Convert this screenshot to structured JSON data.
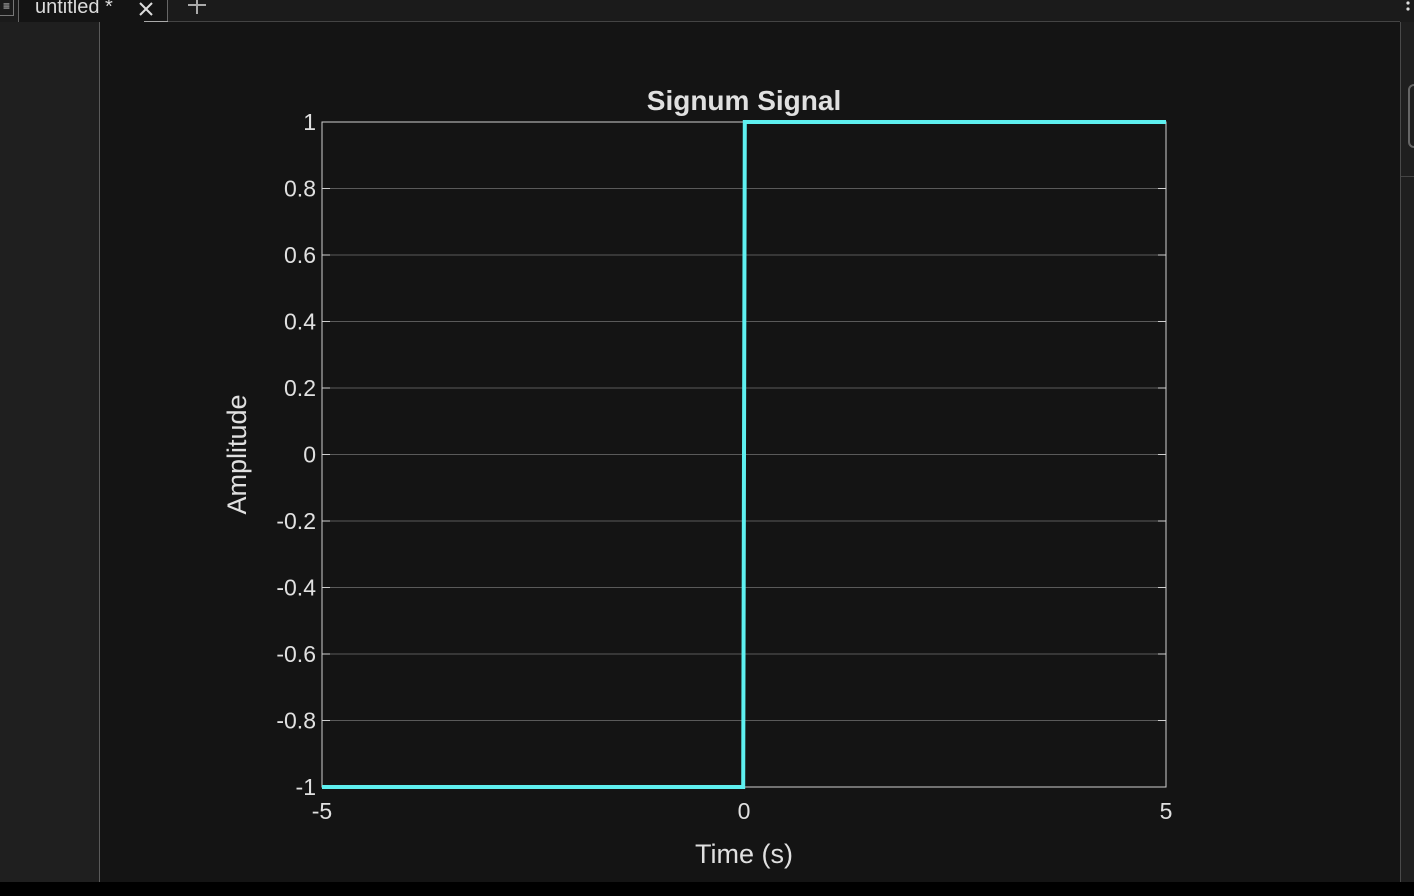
{
  "tab": {
    "label": "untitled *"
  },
  "colors": {
    "background": "#141414",
    "axes_bg": "#141414",
    "grid": "#5a5a5a",
    "axis": "#d0d0d0",
    "line": "#5ef0f0",
    "text": "#e0e0e0"
  },
  "icons": {
    "menu": "menu-icon",
    "close": "close-icon",
    "add": "plus-icon",
    "more": "kebab-icon"
  },
  "chart_data": {
    "type": "line",
    "title": "Signum Signal",
    "xlabel": "Time (s)",
    "ylabel": "Amplitude",
    "xlim": [
      -5,
      5
    ],
    "ylim": [
      -1,
      1
    ],
    "xticks": [
      -5,
      0,
      5
    ],
    "xtick_labels": [
      "-5",
      "0",
      "5"
    ],
    "yticks": [
      -1,
      -0.8,
      -0.6,
      -0.4,
      -0.2,
      0,
      0.2,
      0.4,
      0.6,
      0.8,
      1
    ],
    "ytick_labels": [
      "-1",
      "-0.8",
      "-0.6",
      "-0.4",
      "-0.2",
      "0",
      "0.2",
      "0.4",
      "0.6",
      "0.8",
      "1"
    ],
    "grid": "y-major",
    "series": [
      {
        "x": [
          -5,
          -0.01,
          0.01,
          5
        ],
        "y": [
          -1,
          -1,
          1,
          1
        ]
      }
    ]
  }
}
